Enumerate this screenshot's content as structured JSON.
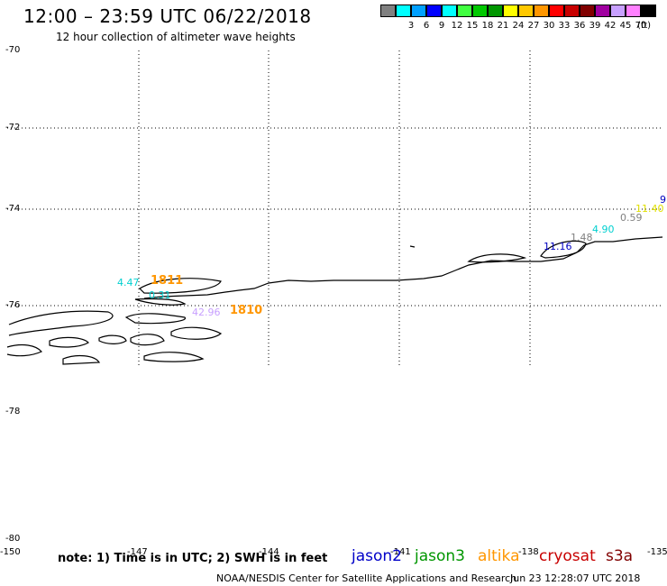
{
  "header": {
    "title": "12:00 – 23:59 UTC 06/22/2018",
    "subtitle": "12 hour collection of altimeter wave heights"
  },
  "color_scale": {
    "unit": "(ft)",
    "swatches": [
      {
        "color": "#808080",
        "label": ""
      },
      {
        "color": "#00ffff",
        "label": "3"
      },
      {
        "color": "#00a0ff",
        "label": "6"
      },
      {
        "color": "#0000ff",
        "label": "9"
      },
      {
        "color": "#00ffff",
        "label": "12"
      },
      {
        "color": "#40ff40",
        "label": "15"
      },
      {
        "color": "#00c800",
        "label": "18"
      },
      {
        "color": "#009600",
        "label": "21"
      },
      {
        "color": "#ffff00",
        "label": "24"
      },
      {
        "color": "#ffc800",
        "label": "27"
      },
      {
        "color": "#ff9600",
        "label": "30"
      },
      {
        "color": "#ff0000",
        "label": "33"
      },
      {
        "color": "#c80000",
        "label": "36"
      },
      {
        "color": "#800000",
        "label": "39"
      },
      {
        "color": "#a000a0",
        "label": "42"
      },
      {
        "color": "#c8a0ff",
        "label": "45"
      },
      {
        "color": "#ff80ff",
        "label": "70"
      },
      {
        "color": "#000000",
        "label": ""
      }
    ]
  },
  "map": {
    "lat_labels": [
      "-70",
      "-72",
      "-74",
      "-76",
      "-78",
      "-80"
    ],
    "lon_labels": [
      "-150",
      "-147",
      "-144",
      "-141",
      "-138",
      "-135"
    ],
    "wave_labels": [
      {
        "text": "4.47",
        "color": "#00d0d0"
      },
      {
        "text": "1811",
        "color": "#ff9600"
      },
      {
        "text": "0.31",
        "color": "#00d0d0"
      },
      {
        "text": "42.96",
        "color": "#c8a0ff"
      },
      {
        "text": "1810",
        "color": "#ff9600"
      },
      {
        "text": "11.16",
        "color": "#0000c0"
      },
      {
        "text": "1.48",
        "color": "#808080"
      },
      {
        "text": "4.90",
        "color": "#00d0d0"
      },
      {
        "text": "0.59",
        "color": "#808080"
      },
      {
        "text": "11.40",
        "color": "#e0e000"
      },
      {
        "text": "9",
        "color": "#0000c0"
      }
    ]
  },
  "footer": {
    "note": "note: 1) Time is in UTC; 2) SWH is in feet",
    "satellites": [
      {
        "name": "jason2",
        "color": "#0000c8"
      },
      {
        "name": "jason3",
        "color": "#009600"
      },
      {
        "name": "altika",
        "color": "#ff9600"
      },
      {
        "name": "cryosat",
        "color": "#c80000"
      },
      {
        "name": "s3a",
        "color": "#800000"
      }
    ],
    "credit": "NOAA/NESDIS Center for Satellite Applications and Research",
    "timestamp": "Jun 23 12:28:07 UTC 2018"
  }
}
